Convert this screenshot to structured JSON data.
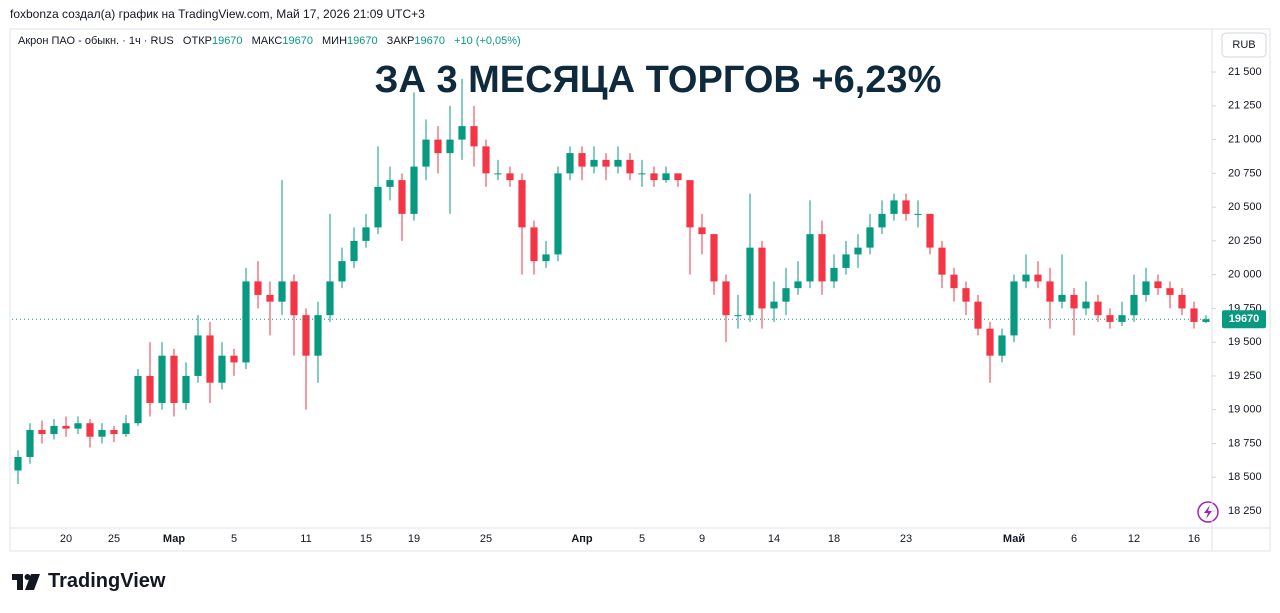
{
  "header": {
    "byline": "foxbonza создал(а) график на TradingView.com, Май 17, 2026 21:09 UTC+3"
  },
  "footer": {
    "brand": "TradingView"
  },
  "chart_data": {
    "type": "candlestick",
    "title": "ЗА 3 МЕСЯЦА ТОРГОВ +6,23%",
    "symbol": "Акрон ПАО - обыкн. · 1ч · RUS",
    "legend": {
      "open_label": "ОТКР",
      "open": 19670,
      "high_label": "МАКС",
      "high": 19670,
      "low_label": "МИН",
      "low": 19670,
      "close_label": "ЗАКР",
      "close": 19670,
      "change": "+10 (+0,05%)"
    },
    "currency": "RUB",
    "up_color": "#089981",
    "down_color": "#f23645",
    "grid": false,
    "last_price_line": true,
    "ylim": [
      18124,
      21819
    ],
    "yticks": [
      {
        "value": 18250,
        "label": "18 250"
      },
      {
        "value": 18500,
        "label": "18 500"
      },
      {
        "value": 18750,
        "label": "18 750"
      },
      {
        "value": 19000,
        "label": "19 000"
      },
      {
        "value": 19250,
        "label": "19 250"
      },
      {
        "value": 19500,
        "label": "19 500"
      },
      {
        "value": 19750,
        "label": "19 750"
      },
      {
        "value": 20000,
        "label": "20 000"
      },
      {
        "value": 20250,
        "label": "20 250"
      },
      {
        "value": 20500,
        "label": "20 500"
      },
      {
        "value": 20750,
        "label": "20 750"
      },
      {
        "value": 21000,
        "label": "21 000"
      },
      {
        "value": 21250,
        "label": "21 250"
      },
      {
        "value": 21500,
        "label": "21 500"
      }
    ],
    "categories": [
      null,
      null,
      null,
      null,
      "20",
      null,
      null,
      null,
      "25",
      null,
      null,
      null,
      null,
      "Мар",
      null,
      null,
      null,
      null,
      "5",
      null,
      null,
      null,
      null,
      null,
      "11",
      null,
      null,
      null,
      null,
      "15",
      null,
      null,
      null,
      "19",
      null,
      null,
      null,
      null,
      null,
      "25",
      null,
      null,
      null,
      null,
      null,
      null,
      null,
      "Апр",
      null,
      null,
      null,
      null,
      "5",
      null,
      null,
      null,
      null,
      "9",
      null,
      null,
      null,
      null,
      null,
      "14",
      null,
      null,
      null,
      null,
      "18",
      null,
      null,
      null,
      null,
      null,
      "23",
      null,
      null,
      null,
      null,
      null,
      null,
      null,
      null,
      "Май",
      null,
      null,
      null,
      null,
      "6",
      null,
      null,
      null,
      null,
      "12",
      null,
      null,
      null,
      null,
      "16",
      null
    ],
    "open": [
      18550,
      18650,
      18850,
      18820,
      18880,
      18860,
      18900,
      18800,
      18850,
      18820,
      18900,
      19250,
      19050,
      19400,
      19050,
      19250,
      19550,
      19200,
      19400,
      19350,
      19950,
      19850,
      19800,
      19950,
      19700,
      19400,
      19700,
      19950,
      20100,
      20250,
      20350,
      20650,
      20700,
      20450,
      20800,
      21000,
      20900,
      21000,
      21100,
      20950,
      20750,
      20750,
      20700,
      20350,
      20100,
      20150,
      20750,
      20900,
      20800,
      20850,
      20800,
      20850,
      20750,
      20750,
      20700,
      20750,
      20700,
      20350,
      20300,
      19950,
      19700,
      19700,
      20200,
      19750,
      19800,
      19900,
      19950,
      20300,
      19950,
      20050,
      20150,
      20200,
      20350,
      20450,
      20550,
      20450,
      20450,
      20200,
      20000,
      19900,
      19800,
      19600,
      19400,
      19550,
      19950,
      20000,
      19950,
      19800,
      19850,
      19750,
      19800,
      19700,
      19650,
      19700,
      19850,
      19950,
      19900,
      19850,
      19750,
      19650
    ],
    "high": [
      18700,
      18900,
      18920,
      18930,
      18950,
      18950,
      18930,
      18900,
      18880,
      18960,
      19300,
      19500,
      19500,
      19450,
      19350,
      19700,
      19650,
      19500,
      19450,
      20050,
      20100,
      19950,
      20700,
      20000,
      19750,
      19800,
      20450,
      20200,
      20350,
      20450,
      20950,
      20800,
      20750,
      21350,
      21150,
      21100,
      21250,
      21450,
      21250,
      21000,
      20850,
      20800,
      20750,
      20400,
      20250,
      20800,
      20950,
      20950,
      20950,
      20900,
      20950,
      20900,
      20850,
      20800,
      20800,
      20750,
      20700,
      20450,
      20300,
      20000,
      19850,
      20600,
      20250,
      19950,
      20050,
      20100,
      20550,
      20400,
      20150,
      20250,
      20300,
      20450,
      20550,
      20600,
      20600,
      20550,
      20450,
      20250,
      20050,
      19950,
      19850,
      19650,
      19600,
      20000,
      20150,
      20100,
      20050,
      20150,
      19900,
      19950,
      19850,
      19750,
      19800,
      20000,
      20050,
      20000,
      19950,
      19900,
      19800,
      19700
    ],
    "low": [
      18450,
      18600,
      18750,
      18780,
      18800,
      18820,
      18720,
      18750,
      18760,
      18800,
      18880,
      18950,
      19000,
      18950,
      19000,
      19200,
      19050,
      19150,
      19250,
      19300,
      19750,
      19550,
      19700,
      19400,
      19000,
      19200,
      19650,
      19900,
      20050,
      20200,
      20300,
      20550,
      20250,
      20400,
      20700,
      20750,
      20450,
      20850,
      20800,
      20650,
      20700,
      20650,
      20000,
      20000,
      20050,
      20100,
      20700,
      20700,
      20750,
      20700,
      20750,
      20700,
      20650,
      20650,
      20680,
      20650,
      20000,
      20150,
      19850,
      19500,
      19600,
      19650,
      19600,
      19650,
      19700,
      19850,
      19900,
      19850,
      19900,
      20000,
      20050,
      20150,
      20300,
      20400,
      20400,
      20350,
      20150,
      19900,
      19800,
      19700,
      19550,
      19200,
      19350,
      19500,
      19900,
      19900,
      19600,
      19750,
      19550,
      19700,
      19650,
      19600,
      19620,
      19650,
      19800,
      19850,
      19750,
      19700,
      19600,
      19640
    ],
    "close": [
      18650,
      18850,
      18820,
      18880,
      18860,
      18900,
      18800,
      18850,
      18820,
      18900,
      19250,
      19050,
      19400,
      19050,
      19250,
      19550,
      19200,
      19400,
      19350,
      19950,
      19850,
      19800,
      19950,
      19700,
      19400,
      19700,
      19950,
      20100,
      20250,
      20350,
      20650,
      20700,
      20450,
      20800,
      21000,
      20900,
      21000,
      21100,
      20950,
      20750,
      20750,
      20700,
      20350,
      20100,
      20150,
      20750,
      20900,
      20800,
      20850,
      20800,
      20850,
      20750,
      20750,
      20700,
      20750,
      20700,
      20350,
      20300,
      19950,
      19700,
      19700,
      20200,
      19750,
      19800,
      19900,
      19950,
      20300,
      19950,
      20050,
      20150,
      20200,
      20350,
      20450,
      20550,
      20450,
      20450,
      20200,
      20000,
      19900,
      19800,
      19600,
      19400,
      19550,
      19950,
      20000,
      19950,
      19800,
      19850,
      19750,
      19800,
      19700,
      19650,
      19700,
      19850,
      19950,
      19900,
      19850,
      19750,
      19650,
      19670
    ]
  }
}
